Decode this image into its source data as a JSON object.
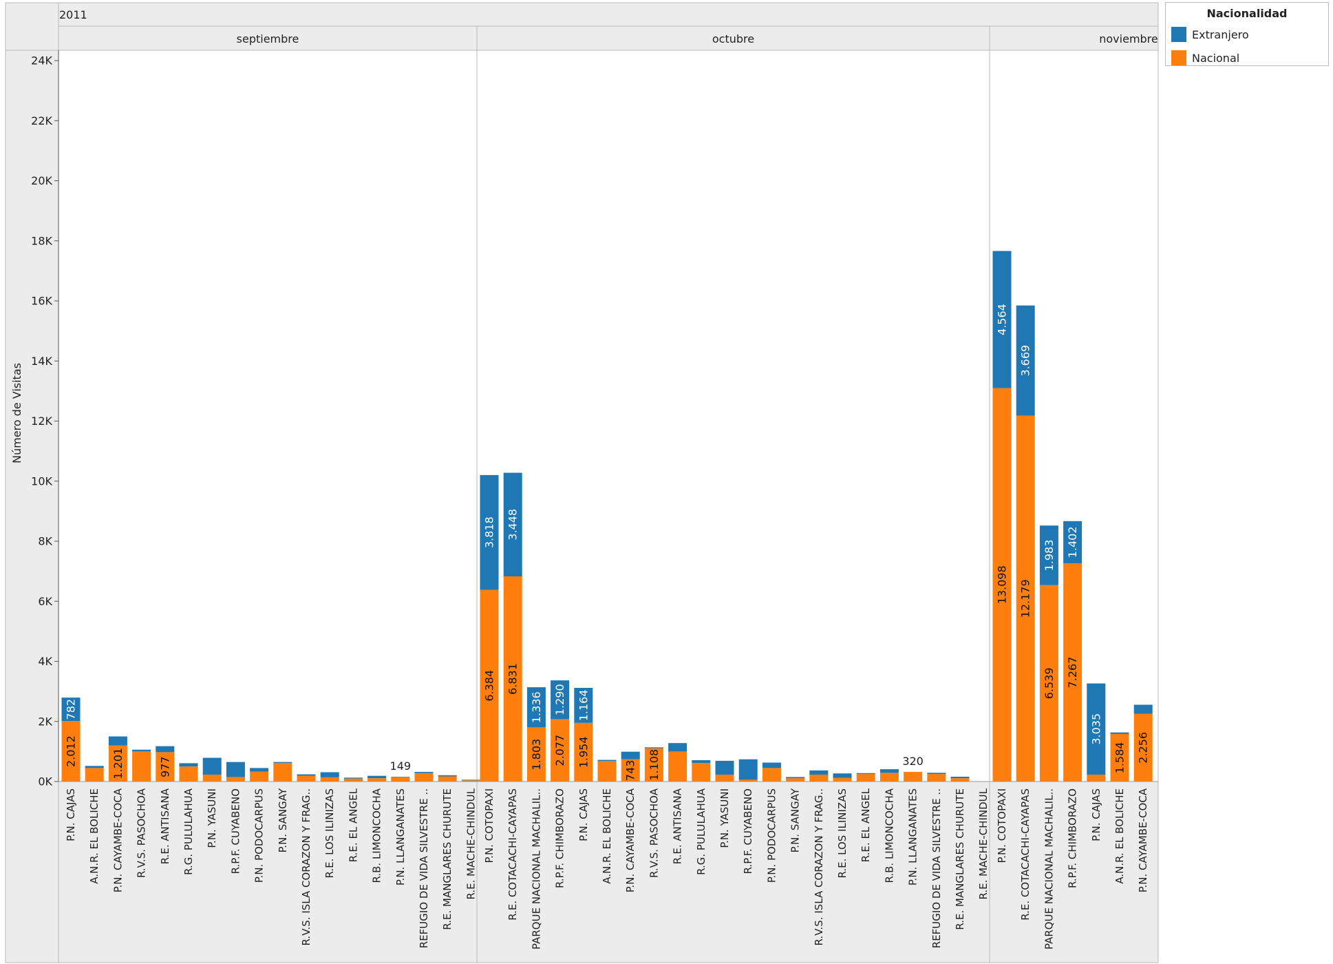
{
  "chart_data": {
    "type": "bar",
    "stacked": true,
    "year_header": "2011",
    "ylabel": "Número de Visitas",
    "ylim": [
      0,
      24500
    ],
    "yticks": [
      0,
      2000,
      4000,
      6000,
      8000,
      10000,
      12000,
      14000,
      16000,
      18000,
      20000,
      22000,
      24000
    ],
    "ytick_labels": [
      "0K",
      "2K",
      "4K",
      "6K",
      "8K",
      "10K",
      "12K",
      "14K",
      "16K",
      "18K",
      "20K",
      "22K",
      "24K"
    ],
    "legend": {
      "title": "Nacionalidad",
      "position": "top-right",
      "items": [
        {
          "name": "Extranjero",
          "color": "#1f77b4"
        },
        {
          "name": "Nacional",
          "color": "#ff7f0e"
        }
      ]
    },
    "panels": [
      {
        "month": "septiembre",
        "categories": [
          "P.N. CAJAS",
          "A.N.R. EL BOLICHE",
          "P.N. CAYAMBE-COCA",
          "R.V.S. PASOCHOA",
          "R.E. ANTISANA",
          "R.G. PULULAHUA",
          "P.N. YASUNI",
          "R.P.F. CUYABENO",
          "P.N. PODOCARPUS",
          "P.N. SANGAY",
          "R.V.S. ISLA CORAZON Y FRAG..",
          "R.E. LOS ILINIZAS",
          "R.E. EL ANGEL",
          "R.B. LIMONCOCHA",
          "P.N. LLANGANATES",
          "REFUGIO DE VIDA SILVESTRE ..",
          "R.E. MANGLARES CHURUTE",
          "R.E. MACHE-CHINDUL"
        ],
        "nacional": [
          2012,
          450,
          1201,
          1000,
          977,
          500,
          230,
          150,
          330,
          620,
          190,
          140,
          100,
          110,
          149,
          280,
          170,
          40
        ],
        "extranjero": [
          782,
          70,
          300,
          60,
          200,
          110,
          560,
          500,
          120,
          30,
          50,
          170,
          30,
          80,
          10,
          40,
          40,
          20
        ],
        "nacional_labels": [
          "2.012",
          "",
          "1.201",
          "",
          "977",
          "",
          "",
          "",
          "",
          "",
          "",
          "",
          "",
          "",
          "",
          "",
          "",
          ""
        ],
        "extranjero_labels": [
          "782",
          "",
          "",
          "",
          "",
          "",
          "",
          "",
          "",
          "",
          "",
          "",
          "",
          "",
          "",
          "",
          "",
          ""
        ],
        "total_labels": [
          "",
          "",
          "",
          "",
          "",
          "",
          "",
          "",
          "",
          "",
          "",
          "",
          "",
          "",
          "149",
          "",
          "",
          ""
        ]
      },
      {
        "month": "octubre",
        "categories": [
          "P.N. COTOPAXI",
          "R.E. COTACACHI-CAYAPAS",
          "PARQUE NACIONAL MACHALIL..",
          "R.P.F. CHIMBORAZO",
          "P.N. CAJAS",
          "A.N.R. EL BOLICHE",
          "P.N. CAYAMBE-COCA",
          "R.V.S. PASOCHOA",
          "R.E. ANTISANA",
          "R.G. PULULAHUA",
          "P.N. YASUNI",
          "R.P.F. CUYABENO",
          "P.N. PODOCARPUS",
          "P.N. SANGAY",
          "R.V.S. ISLA CORAZON Y FRAG..",
          "R.E. LOS ILINIZAS",
          "R.E. EL ANGEL",
          "R.B. LIMONCOCHA",
          "P.N. LLANGANATES",
          "REFUGIO DE VIDA SILVESTRE ..",
          "R.E. MANGLARES CHURUTE",
          "R.E. MACHE-CHINDUL"
        ],
        "nacional": [
          6384,
          6831,
          1803,
          2077,
          1954,
          680,
          743,
          1108,
          1000,
          620,
          230,
          60,
          450,
          110,
          230,
          120,
          250,
          290,
          320,
          250,
          110,
          0
        ],
        "extranjero": [
          3818,
          3448,
          1336,
          1290,
          1164,
          40,
          250,
          30,
          280,
          90,
          460,
          680,
          180,
          40,
          140,
          150,
          30,
          120,
          0,
          40,
          50,
          0
        ],
        "nacional_labels": [
          "6.384",
          "6.831",
          "1.803",
          "2.077",
          "1.954",
          "",
          "743",
          "1.108",
          "",
          "",
          "",
          "",
          "",
          "",
          "",
          "",
          "",
          "",
          "",
          "",
          "",
          ""
        ],
        "extranjero_labels": [
          "3.818",
          "3.448",
          "1.336",
          "1.290",
          "1.164",
          "",
          "",
          "",
          "",
          "",
          "",
          "",
          "",
          "",
          "",
          "",
          "",
          "",
          "",
          "",
          "",
          ""
        ],
        "total_labels": [
          "",
          "",
          "",
          "",
          "",
          "",
          "",
          "",
          "",
          "",
          "",
          "",
          "",
          "",
          "",
          "",
          "",
          "",
          "320",
          "",
          "",
          ""
        ]
      },
      {
        "month": "noviembre",
        "categories": [
          "P.N. COTOPAXI",
          "R.E. COTACACHI-CAYAPAS",
          "PARQUE NACIONAL MACHALIL..",
          "R.P.F. CHIMBORAZO",
          "P.N. CAJAS",
          "A.N.R. EL BOLICHE",
          "P.N. CAYAMBE-COCA"
        ],
        "nacional": [
          13098,
          12179,
          6539,
          7267,
          230,
          1584,
          2256
        ],
        "extranjero": [
          4564,
          3669,
          1983,
          1402,
          3035,
          50,
          300
        ],
        "nacional_labels": [
          "13.098",
          "12.179",
          "6.539",
          "7.267",
          "",
          "1.584",
          "2.256"
        ],
        "extranjero_labels": [
          "4.564",
          "3.669",
          "1.983",
          "1.402",
          "3.035",
          "",
          ""
        ],
        "total_labels": [
          "",
          "",
          "",
          "",
          "",
          "",
          ""
        ]
      }
    ]
  }
}
